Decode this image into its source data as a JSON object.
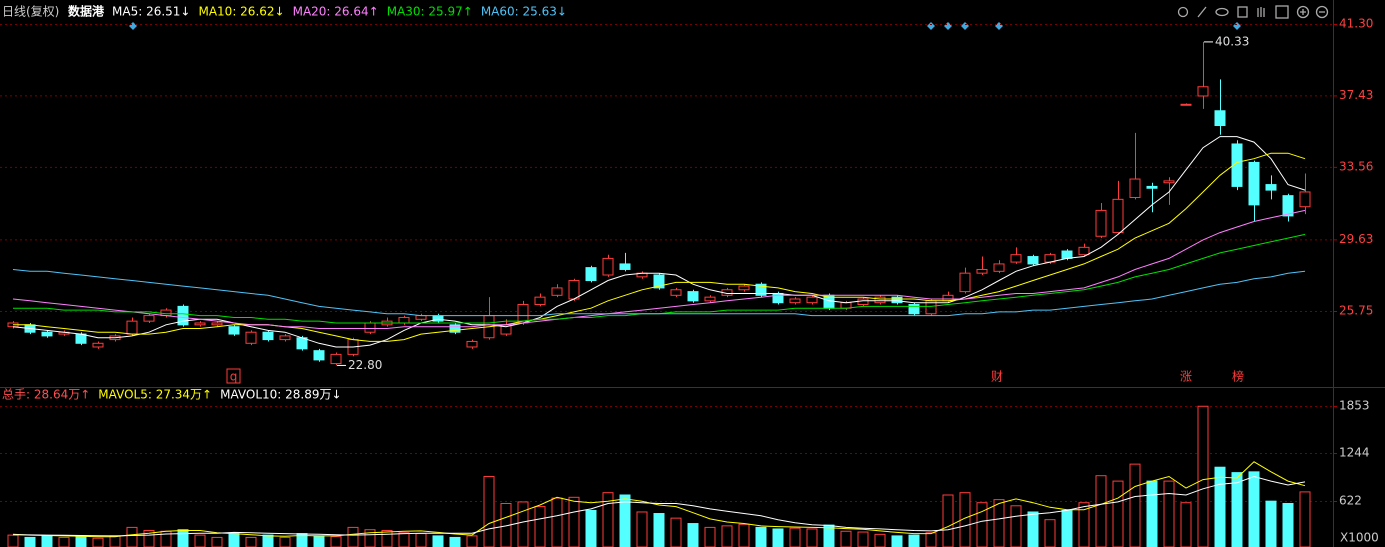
{
  "header": {
    "period": "日线(复权)",
    "name": "数据港"
  },
  "chart_data": [
    {
      "type": "candlestick",
      "open": [
        24.9,
        25.0,
        24.6,
        24.5,
        24.5,
        23.8,
        24.2,
        24.5,
        25.2,
        25.5,
        26.0,
        25.0,
        25.0,
        24.9,
        24.0,
        24.6,
        24.2,
        24.3,
        23.6,
        22.9,
        23.4,
        24.6,
        25.0,
        25.1,
        25.3,
        25.5,
        25.0,
        23.8,
        24.3,
        24.5,
        25.1,
        26.1,
        26.6,
        26.4,
        28.1,
        27.7,
        28.3,
        27.6,
        27.7,
        26.6,
        26.8,
        26.3,
        26.6,
        26.9,
        27.2,
        26.7,
        26.2,
        26.2,
        26.6,
        25.9,
        26.1,
        26.2,
        26.5,
        26.1,
        25.6,
        26.3,
        26.8,
        27.8,
        27.9,
        28.4,
        28.7,
        28.4,
        29.0,
        28.8,
        29.8,
        30.0,
        31.9,
        32.5,
        32.7,
        36.9,
        37.4,
        36.6,
        34.8,
        33.8,
        32.6,
        32.0,
        31.4
      ],
      "high": [
        25.2,
        25.1,
        24.7,
        24.7,
        24.6,
        24.1,
        24.5,
        25.4,
        25.6,
        25.9,
        26.1,
        25.2,
        25.2,
        25.0,
        24.7,
        24.7,
        24.5,
        24.4,
        23.7,
        23.5,
        24.3,
        25.2,
        25.4,
        25.5,
        25.6,
        25.6,
        25.1,
        24.2,
        26.5,
        25.3,
        26.3,
        26.7,
        27.2,
        27.5,
        28.2,
        28.8,
        28.9,
        27.9,
        27.8,
        27.0,
        26.9,
        26.6,
        27.0,
        27.2,
        27.3,
        26.8,
        26.5,
        26.6,
        26.7,
        26.3,
        26.5,
        26.6,
        26.6,
        26.2,
        26.4,
        26.8,
        28.1,
        28.7,
        28.5,
        29.2,
        28.8,
        28.9,
        29.1,
        29.4,
        31.6,
        32.8,
        35.4,
        32.7,
        33.0,
        37.0,
        40.33,
        38.3,
        35.0,
        33.9,
        33.1,
        32.1,
        33.2
      ],
      "low": [
        24.8,
        24.5,
        24.3,
        24.4,
        23.9,
        23.7,
        24.1,
        24.4,
        25.1,
        25.4,
        24.9,
        24.9,
        24.9,
        24.4,
        23.9,
        24.1,
        24.1,
        23.6,
        23.0,
        22.8,
        23.3,
        24.5,
        24.9,
        25.0,
        25.2,
        25.1,
        24.5,
        23.7,
        24.2,
        24.4,
        25.0,
        26.0,
        26.5,
        26.3,
        27.3,
        27.6,
        27.9,
        27.5,
        26.9,
        26.5,
        26.2,
        26.2,
        26.5,
        26.8,
        26.5,
        26.1,
        26.1,
        26.1,
        25.8,
        25.8,
        26.0,
        26.1,
        26.1,
        25.5,
        25.5,
        26.2,
        26.7,
        27.7,
        27.8,
        28.3,
        28.2,
        28.3,
        28.5,
        28.7,
        29.7,
        29.9,
        31.8,
        31.1,
        31.5,
        36.9,
        36.7,
        35.3,
        32.3,
        30.6,
        31.8,
        30.6,
        31.0
      ],
      "close": [
        25.1,
        24.6,
        24.4,
        24.6,
        24.0,
        24.0,
        24.4,
        25.2,
        25.5,
        25.8,
        25.0,
        25.1,
        25.1,
        24.5,
        24.6,
        24.2,
        24.4,
        23.7,
        23.1,
        23.4,
        24.2,
        25.1,
        25.2,
        25.4,
        25.5,
        25.2,
        24.6,
        24.1,
        25.5,
        25.0,
        26.1,
        26.5,
        27.0,
        27.4,
        27.4,
        28.6,
        28.0,
        27.8,
        27.0,
        26.9,
        26.3,
        26.5,
        26.9,
        27.1,
        26.6,
        26.2,
        26.4,
        26.5,
        25.9,
        26.2,
        26.4,
        26.5,
        26.2,
        25.6,
        26.3,
        26.6,
        27.8,
        28.0,
        28.3,
        28.8,
        28.3,
        28.8,
        28.6,
        29.2,
        31.2,
        31.8,
        32.9,
        32.4,
        32.8,
        36.95,
        37.9,
        35.8,
        32.5,
        31.5,
        32.3,
        30.9,
        32.2
      ],
      "up_color": "#ff3c3c",
      "down_color": "#54ffff",
      "series": [
        {
          "name": "MA5: 26.51↓",
          "color": "#ffffff",
          "values": [
            24.9,
            24.8,
            24.7,
            24.6,
            24.5,
            24.3,
            24.3,
            24.4,
            24.6,
            25.0,
            25.2,
            25.3,
            25.3,
            25.1,
            24.9,
            24.7,
            24.6,
            24.3,
            24.0,
            23.8,
            23.8,
            23.9,
            24.2,
            24.7,
            25.1,
            25.3,
            25.2,
            25.0,
            25.0,
            24.9,
            25.1,
            25.4,
            26.0,
            26.4,
            26.9,
            27.4,
            27.7,
            27.8,
            27.8,
            27.7,
            27.2,
            26.9,
            26.7,
            26.7,
            26.7,
            26.7,
            26.6,
            26.6,
            26.3,
            26.2,
            26.3,
            26.3,
            26.3,
            26.2,
            26.2,
            26.2,
            26.5,
            26.9,
            27.4,
            27.9,
            28.2,
            28.4,
            28.6,
            28.7,
            29.2,
            29.9,
            30.7,
            31.5,
            32.2,
            33.4,
            34.6,
            35.2,
            35.2,
            34.9,
            34.0,
            32.6,
            32.3
          ]
        },
        {
          "name": "MA10: 26.62↓",
          "color": "#ffff00",
          "values": [
            25.0,
            25.0,
            24.9,
            24.8,
            24.7,
            24.6,
            24.6,
            24.5,
            24.5,
            24.6,
            24.8,
            24.8,
            24.9,
            25.0,
            25.0,
            25.0,
            24.9,
            24.8,
            24.6,
            24.4,
            24.2,
            24.1,
            24.1,
            24.2,
            24.5,
            24.6,
            24.7,
            24.8,
            24.9,
            25.0,
            25.2,
            25.3,
            25.5,
            25.7,
            25.9,
            26.3,
            26.6,
            26.9,
            27.1,
            27.3,
            27.3,
            27.3,
            27.2,
            27.2,
            27.1,
            27.0,
            26.8,
            26.7,
            26.5,
            26.5,
            26.5,
            26.4,
            26.4,
            26.4,
            26.3,
            26.3,
            26.4,
            26.6,
            26.8,
            27.1,
            27.4,
            27.7,
            28.0,
            28.3,
            28.7,
            29.1,
            29.7,
            30.1,
            30.5,
            31.3,
            32.2,
            33.1,
            33.8,
            34.0,
            34.3,
            34.3,
            34.0
          ]
        },
        {
          "name": "MA20: 26.64↑",
          "color": "#ff80ff",
          "values": [
            26.4,
            26.3,
            26.2,
            26.1,
            26.0,
            25.9,
            25.8,
            25.7,
            25.6,
            25.5,
            25.4,
            25.3,
            25.2,
            25.1,
            25.0,
            25.0,
            24.9,
            24.9,
            24.8,
            24.8,
            24.8,
            24.8,
            24.8,
            24.9,
            24.9,
            24.9,
            24.9,
            24.9,
            25.0,
            25.0,
            25.1,
            25.2,
            25.3,
            25.4,
            25.5,
            25.6,
            25.7,
            25.8,
            25.9,
            26.0,
            26.1,
            26.2,
            26.3,
            26.4,
            26.5,
            26.6,
            26.6,
            26.6,
            26.6,
            26.6,
            26.6,
            26.6,
            26.6,
            26.5,
            26.4,
            26.4,
            26.4,
            26.5,
            26.6,
            26.7,
            26.7,
            26.8,
            26.9,
            27.0,
            27.3,
            27.6,
            28.0,
            28.3,
            28.6,
            29.1,
            29.6,
            30.0,
            30.3,
            30.6,
            30.8,
            31.0,
            31.2
          ]
        },
        {
          "name": "MA30: 25.97↑",
          "color": "#00e000",
          "values": [
            25.9,
            25.9,
            25.9,
            25.8,
            25.8,
            25.8,
            25.7,
            25.7,
            25.7,
            25.6,
            25.6,
            25.5,
            25.5,
            25.4,
            25.4,
            25.3,
            25.3,
            25.2,
            25.2,
            25.1,
            25.1,
            25.1,
            25.1,
            25.1,
            25.1,
            25.1,
            25.1,
            25.1,
            25.1,
            25.2,
            25.2,
            25.3,
            25.3,
            25.4,
            25.4,
            25.5,
            25.5,
            25.6,
            25.6,
            25.7,
            25.7,
            25.7,
            25.8,
            25.8,
            25.8,
            25.8,
            25.9,
            25.9,
            25.9,
            25.9,
            26.0,
            26.0,
            26.0,
            26.0,
            26.0,
            26.1,
            26.2,
            26.3,
            26.4,
            26.5,
            26.6,
            26.7,
            26.8,
            26.9,
            27.1,
            27.3,
            27.6,
            27.8,
            28.0,
            28.3,
            28.6,
            28.9,
            29.1,
            29.3,
            29.5,
            29.7,
            29.9
          ]
        },
        {
          "name": "MA60: 25.63↓",
          "color": "#4fc3f7",
          "values": [
            28.0,
            27.9,
            27.9,
            27.8,
            27.7,
            27.6,
            27.5,
            27.4,
            27.3,
            27.2,
            27.1,
            27.0,
            26.9,
            26.8,
            26.7,
            26.6,
            26.4,
            26.2,
            26.0,
            25.9,
            25.8,
            25.7,
            25.6,
            25.6,
            25.5,
            25.5,
            25.5,
            25.5,
            25.5,
            25.5,
            25.5,
            25.5,
            25.6,
            25.6,
            25.6,
            25.6,
            25.6,
            25.6,
            25.6,
            25.6,
            25.6,
            25.6,
            25.6,
            25.6,
            25.6,
            25.6,
            25.6,
            25.5,
            25.5,
            25.5,
            25.5,
            25.5,
            25.5,
            25.5,
            25.5,
            25.5,
            25.6,
            25.6,
            25.7,
            25.7,
            25.8,
            25.8,
            25.9,
            26.0,
            26.1,
            26.2,
            26.3,
            26.4,
            26.6,
            26.8,
            27.0,
            27.2,
            27.3,
            27.5,
            27.6,
            27.8,
            27.9
          ]
        }
      ],
      "extreme_labels": [
        {
          "value": 40.33,
          "label": "40.33"
        },
        {
          "value": 22.8,
          "label": "22.80"
        }
      ],
      "markers": [
        "q",
        "财",
        "涨",
        "榜"
      ],
      "ylim": [
        21.74,
        42.33
      ],
      "yticks": [
        {
          "value": 41.3,
          "label": "41.30"
        },
        {
          "value": 37.43,
          "label": "37.43"
        },
        {
          "value": 33.56,
          "label": "33.56"
        },
        {
          "value": 29.63,
          "label": "29.63"
        },
        {
          "value": 25.75,
          "label": "25.75"
        }
      ],
      "grid": true
    },
    {
      "type": "bar",
      "total_label": "总手: 28.64万↑",
      "values": [
        180,
        150,
        170,
        150,
        160,
        140,
        170,
        280,
        240,
        230,
        250,
        180,
        150,
        200,
        150,
        180,
        150,
        200,
        170,
        160,
        280,
        250,
        240,
        210,
        200,
        170,
        150,
        170,
        940,
        590,
        610,
        550,
        660,
        670,
        500,
        730,
        700,
        480,
        460,
        400,
        330,
        280,
        300,
        320,
        280,
        260,
        270,
        260,
        310,
        230,
        220,
        190,
        170,
        180,
        210,
        700,
        730,
        600,
        640,
        560,
        480,
        380,
        500,
        600,
        950,
        880,
        1100,
        880,
        880,
        600,
        1850,
        1060,
        990,
        1000,
        620,
        590,
        740
      ],
      "series": [
        {
          "name": "MAVOL5: 27.34万↑",
          "color": "#ffff00",
          "values": [
            190,
            180,
            175,
            170,
            165,
            160,
            160,
            185,
            205,
            230,
            240,
            240,
            210,
            200,
            185,
            170,
            165,
            175,
            170,
            170,
            190,
            210,
            220,
            230,
            235,
            215,
            195,
            180,
            330,
            410,
            490,
            570,
            670,
            620,
            600,
            620,
            650,
            620,
            570,
            550,
            470,
            390,
            350,
            330,
            300,
            290,
            285,
            280,
            275,
            265,
            255,
            235,
            215,
            200,
            200,
            290,
            400,
            485,
            590,
            650,
            600,
            540,
            510,
            510,
            580,
            660,
            810,
            880,
            940,
            790,
            900,
            930,
            920,
            1130,
            1000,
            880,
            820
          ]
        },
        {
          "name": "MAVOL10: 28.89万↓",
          "color": "#ffffff",
          "values": [
            185,
            183,
            180,
            178,
            175,
            172,
            170,
            175,
            180,
            195,
            200,
            205,
            205,
            215,
            210,
            205,
            200,
            195,
            190,
            185,
            180,
            185,
            190,
            200,
            205,
            205,
            205,
            205,
            260,
            300,
            350,
            390,
            430,
            480,
            520,
            590,
            610,
            600,
            590,
            590,
            560,
            520,
            490,
            460,
            430,
            380,
            340,
            315,
            305,
            280,
            270,
            260,
            250,
            240,
            235,
            250,
            300,
            360,
            390,
            425,
            450,
            470,
            500,
            550,
            580,
            610,
            680,
            700,
            720,
            700,
            780,
            840,
            860,
            940,
            880,
            830,
            870
          ]
        }
      ],
      "unit_label": "X1000",
      "ylim": [
        26,
        1996
      ],
      "yticks": [
        622,
        1244,
        1853
      ],
      "grid": true
    }
  ]
}
